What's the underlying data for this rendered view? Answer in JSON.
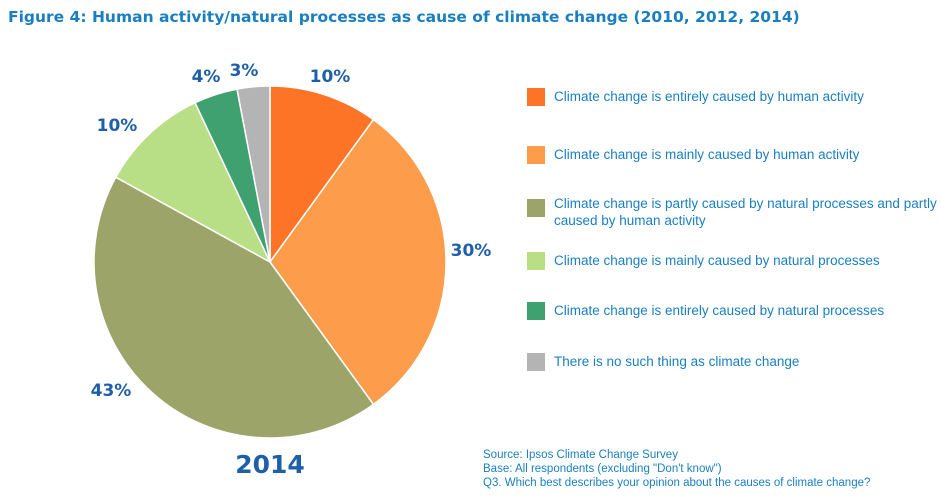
{
  "title": "Figure 4: Human activity/natural processes as cause of climate change (2010, 2012, 2014)",
  "chart_data": {
    "type": "pie",
    "year_label": "2014",
    "slices": [
      {
        "label": "Climate change is entirely caused by human activity",
        "value": 10,
        "display": "10%",
        "color": "#fd7427"
      },
      {
        "label": "Climate change is mainly caused by human activity",
        "value": 30,
        "display": "30%",
        "color": "#fd9c4a"
      },
      {
        "label": "Climate change is partly caused by natural processes and partly caused by human activity",
        "value": 43,
        "display": "43%",
        "color": "#9ca46a"
      },
      {
        "label": "Climate change is mainly caused by natural processes",
        "value": 10,
        "display": "10%",
        "color": "#b8df85"
      },
      {
        "label": "Climate change is entirely caused by natural processes",
        "value": 4,
        "display": "4%",
        "color": "#3fa070"
      },
      {
        "label": "There is no such thing as climate change",
        "value": 3,
        "display": "3%",
        "color": "#b4b4b4"
      }
    ],
    "legend_position": "right"
  },
  "source": {
    "line1": "Source: Ipsos Climate Change Survey",
    "line2": "Base: All respondents (excluding \"Don't know\")",
    "line3": "Q3. Which best describes your opinion about the causes of climate change?"
  }
}
